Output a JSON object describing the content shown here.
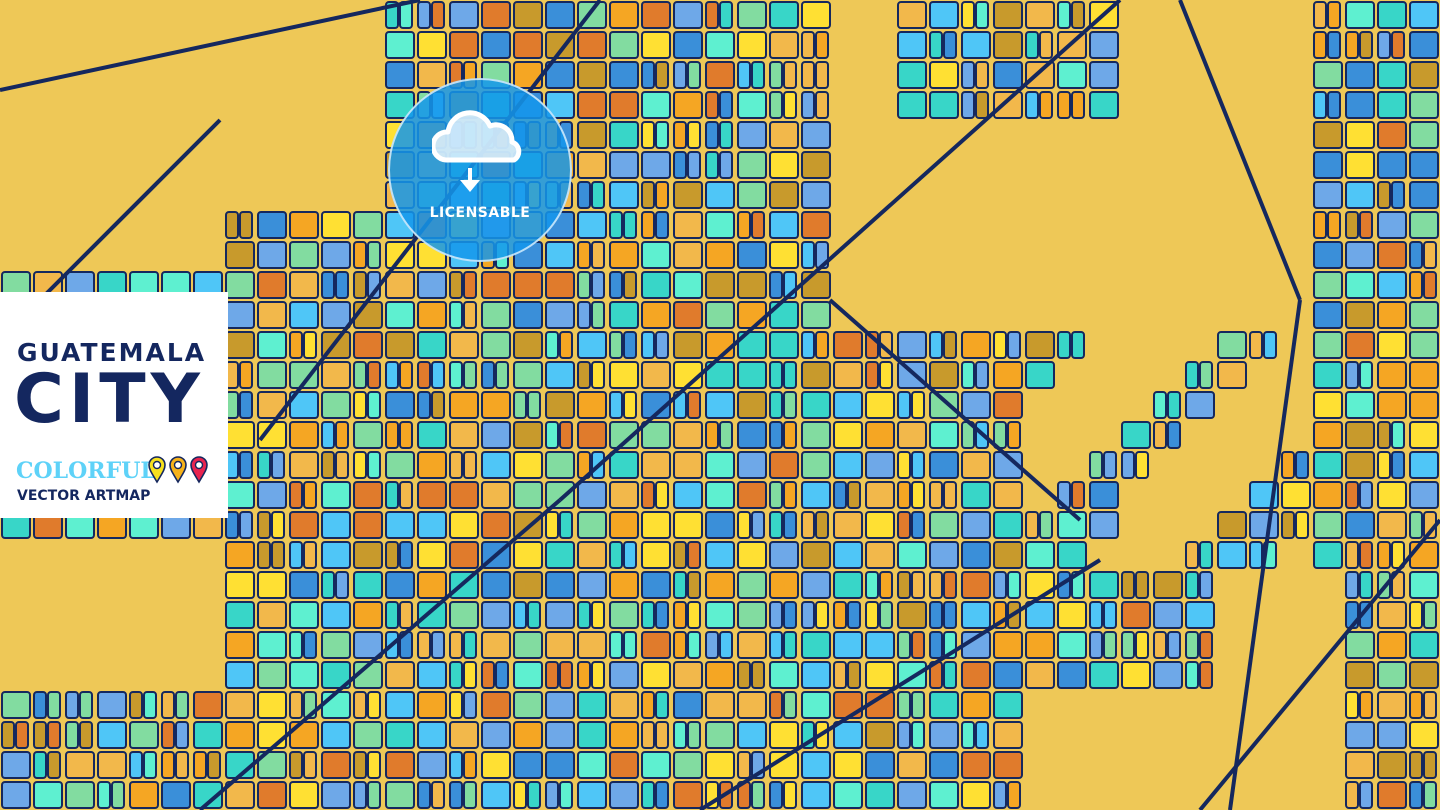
{
  "title": {
    "line1": "GUATEMALA",
    "line2": "CITY",
    "tagline_colored": "COLORFUL",
    "tagline": "VECTOR ARTMAP"
  },
  "badge": {
    "label": "LICENSABLE",
    "icon": "cloud-download-icon"
  },
  "pins": [
    {
      "color": "#f7e11e"
    },
    {
      "color": "#f6b21a"
    },
    {
      "color": "#e8234f"
    }
  ],
  "palette": {
    "land": "#eec857",
    "roads": "#15285e",
    "blocks": [
      "#f5a623",
      "#4fc6f7",
      "#3a8fd9",
      "#5ef0d0",
      "#ffe033",
      "#e07b2c",
      "#c89a2c",
      "#82dca0",
      "#6ea8e8",
      "#f2b84b",
      "#38d6c8"
    ]
  }
}
